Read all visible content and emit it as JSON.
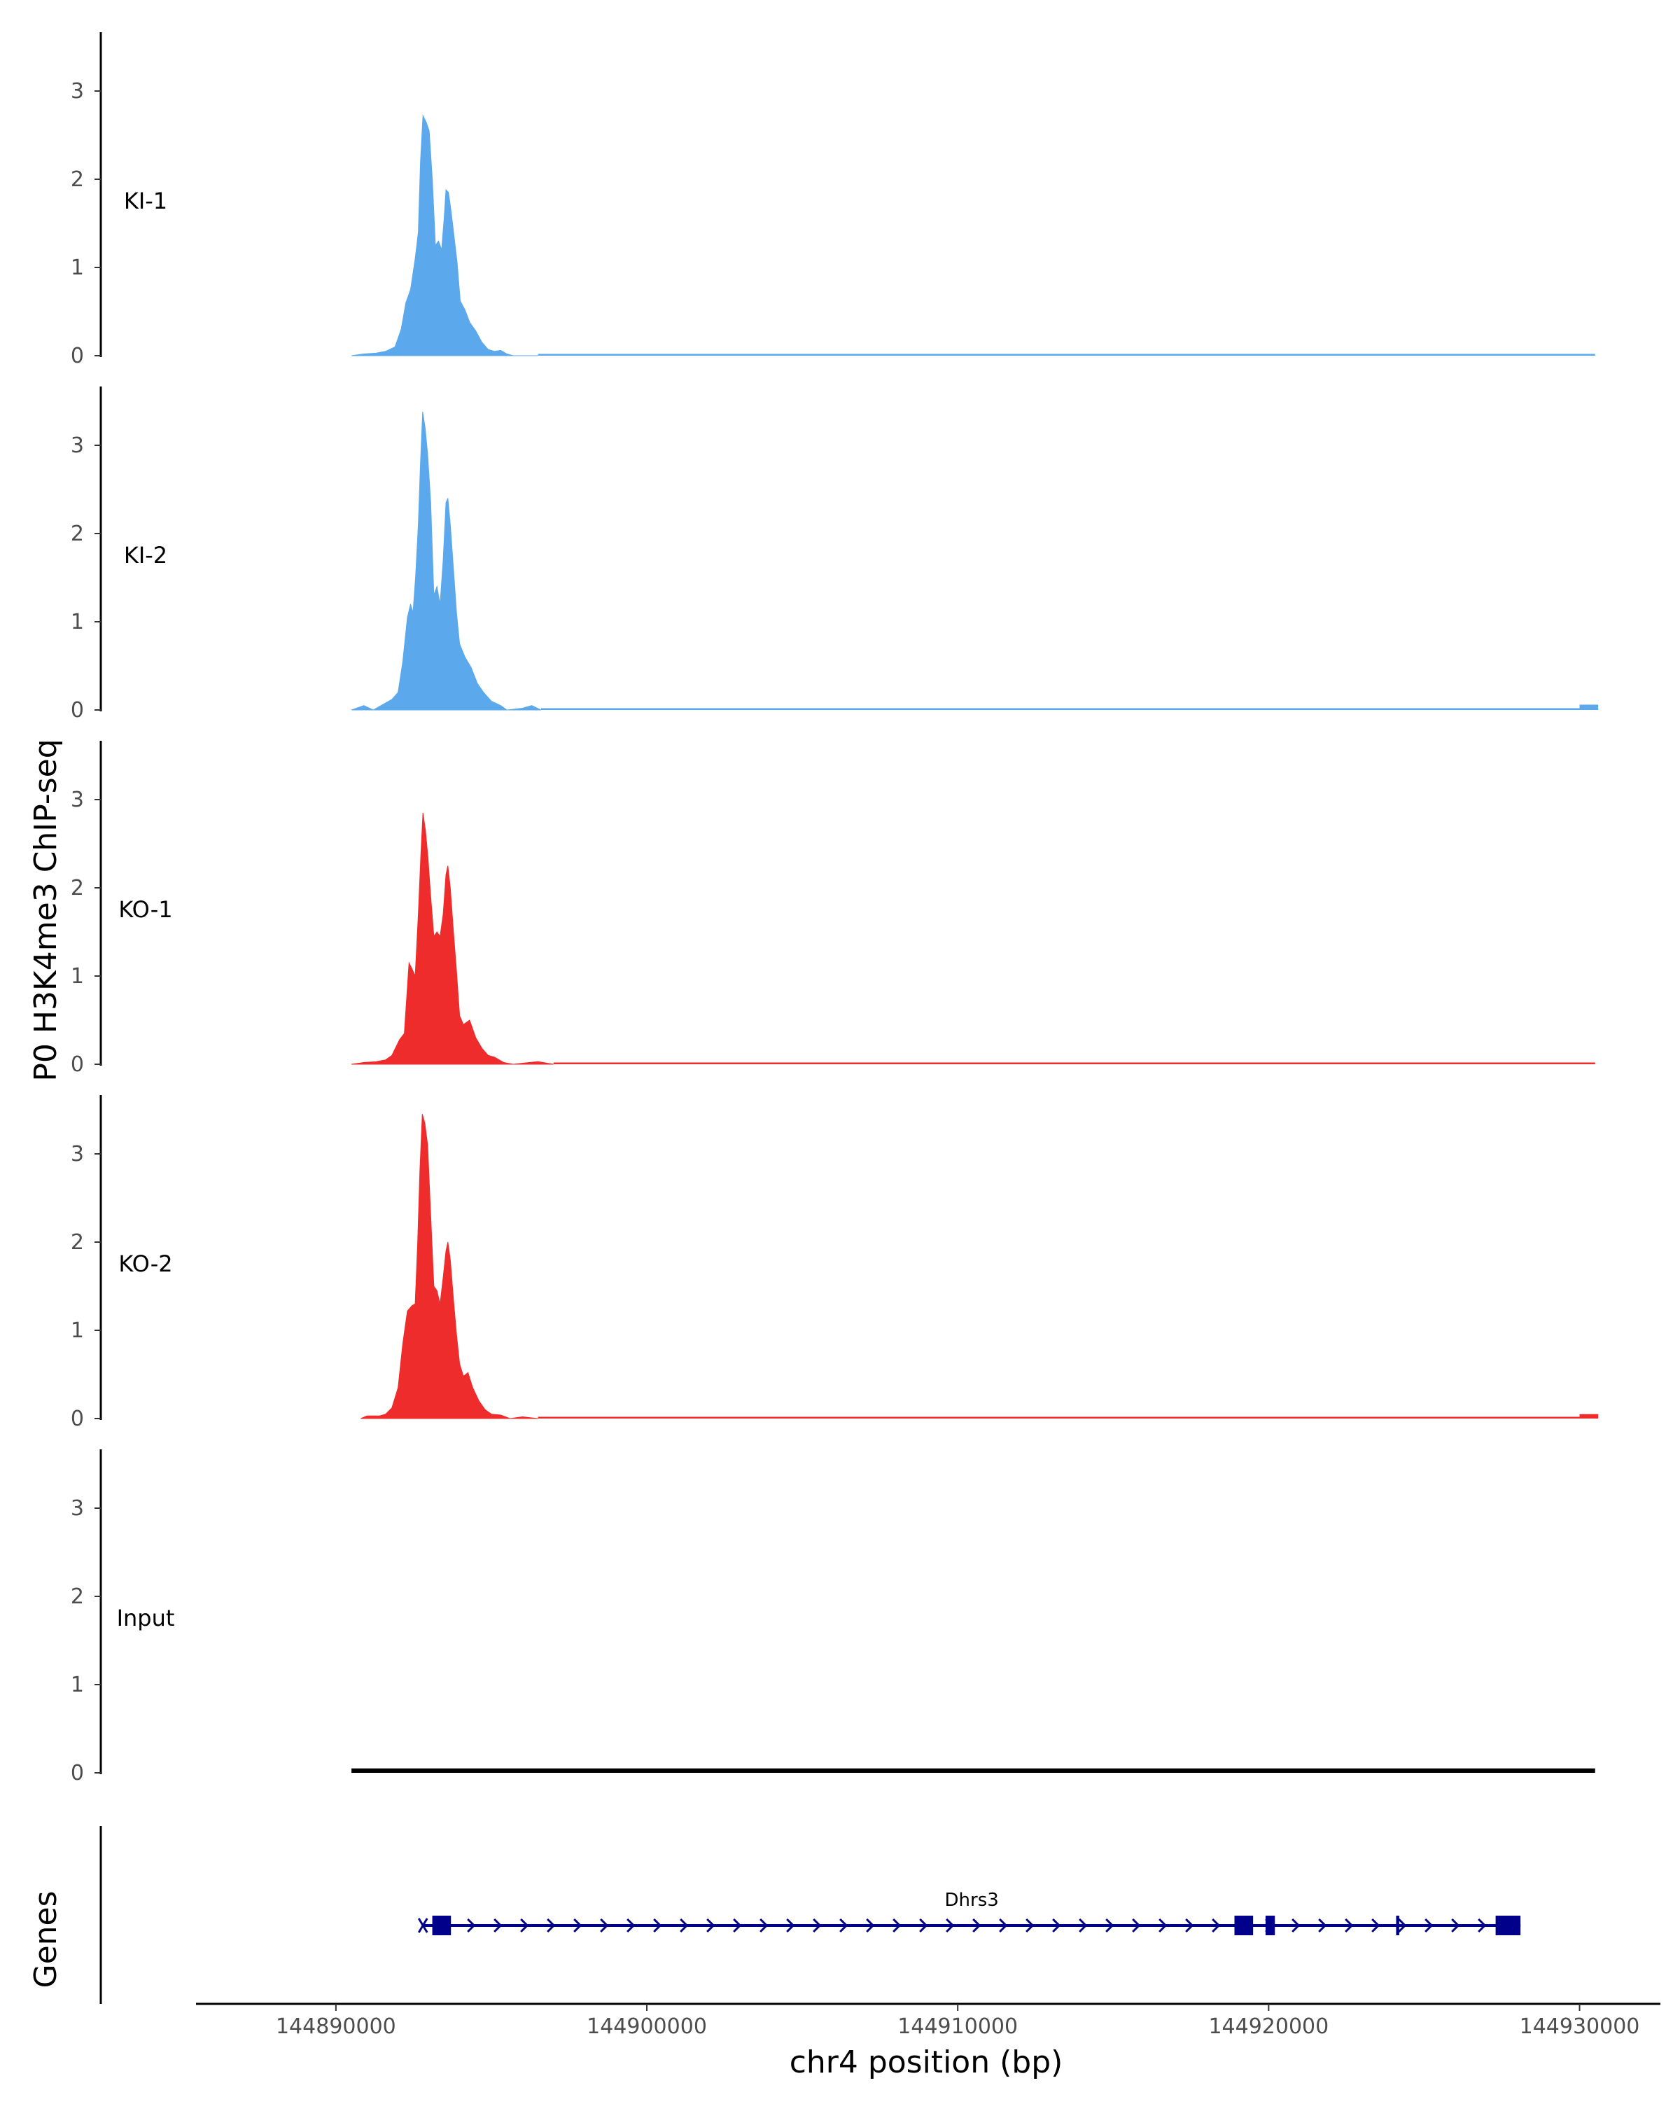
{
  "chart_data": {
    "type": "area",
    "title": "",
    "xlabel": "chr4 position (bp)",
    "ylabel": "P0 H3K4me3 ChIP-seq",
    "genes_label": "Genes",
    "xlim": [
      144885500,
      144932600
    ],
    "ylim": [
      0,
      3.65
    ],
    "yticks": [
      0,
      1,
      2,
      3
    ],
    "xticks": [
      144890000,
      144900000,
      144910000,
      144920000,
      144930000
    ],
    "xtick_labels": [
      "144890000",
      "144900000",
      "144910000",
      "144920000",
      "144930000"
    ],
    "tracks": [
      {
        "name": "KI-1",
        "color": "#5ba9ec",
        "points": [
          [
            144890500,
            0.0
          ],
          [
            144890900,
            0.02
          ],
          [
            144891300,
            0.03
          ],
          [
            144891600,
            0.05
          ],
          [
            144891900,
            0.1
          ],
          [
            144892100,
            0.3
          ],
          [
            144892250,
            0.6
          ],
          [
            144892400,
            0.75
          ],
          [
            144892550,
            1.1
          ],
          [
            144892650,
            1.4
          ],
          [
            144892720,
            2.2
          ],
          [
            144892800,
            2.72
          ],
          [
            144892900,
            2.65
          ],
          [
            144893000,
            2.55
          ],
          [
            144893100,
            2.0
          ],
          [
            144893200,
            1.25
          ],
          [
            144893300,
            1.3
          ],
          [
            144893400,
            1.2
          ],
          [
            144893480,
            1.55
          ],
          [
            144893540,
            1.88
          ],
          [
            144893620,
            1.85
          ],
          [
            144893700,
            1.65
          ],
          [
            144893800,
            1.35
          ],
          [
            144893900,
            1.05
          ],
          [
            144894000,
            0.62
          ],
          [
            144894150,
            0.52
          ],
          [
            144894300,
            0.38
          ],
          [
            144894500,
            0.28
          ],
          [
            144894700,
            0.15
          ],
          [
            144894900,
            0.07
          ],
          [
            144895100,
            0.05
          ],
          [
            144895300,
            0.06
          ],
          [
            144895500,
            0.02
          ],
          [
            144895700,
            0.0
          ],
          [
            144896000,
            0.0
          ],
          [
            144896500,
            0.0
          ]
        ],
        "baseline": [
          [
            144896500,
            144930500,
            0.02
          ]
        ]
      },
      {
        "name": "KI-2",
        "color": "#5ba9ec",
        "points": [
          [
            144890500,
            0.0
          ],
          [
            144890900,
            0.05
          ],
          [
            144891200,
            0.0
          ],
          [
            144891500,
            0.06
          ],
          [
            144891800,
            0.12
          ],
          [
            144892000,
            0.2
          ],
          [
            144892150,
            0.55
          ],
          [
            144892300,
            1.05
          ],
          [
            144892400,
            1.2
          ],
          [
            144892480,
            1.1
          ],
          [
            144892560,
            1.5
          ],
          [
            144892650,
            2.1
          ],
          [
            144892720,
            2.8
          ],
          [
            144892790,
            3.38
          ],
          [
            144892870,
            3.2
          ],
          [
            144892950,
            2.9
          ],
          [
            144893050,
            2.35
          ],
          [
            144893150,
            1.3
          ],
          [
            144893250,
            1.4
          ],
          [
            144893350,
            1.2
          ],
          [
            144893450,
            1.7
          ],
          [
            144893540,
            2.35
          ],
          [
            144893600,
            2.4
          ],
          [
            144893680,
            2.1
          ],
          [
            144893780,
            1.6
          ],
          [
            144893880,
            1.1
          ],
          [
            144893980,
            0.75
          ],
          [
            144894150,
            0.6
          ],
          [
            144894350,
            0.48
          ],
          [
            144894550,
            0.3
          ],
          [
            144894750,
            0.2
          ],
          [
            144895000,
            0.1
          ],
          [
            144895300,
            0.05
          ],
          [
            144895500,
            0.0
          ],
          [
            144896000,
            0.02
          ],
          [
            144896300,
            0.05
          ],
          [
            144896600,
            0.0
          ]
        ],
        "baseline": [
          [
            144896600,
            144930000,
            0.02
          ],
          [
            144930000,
            144930600,
            0.06
          ]
        ]
      },
      {
        "name": "KO-1",
        "color": "#ee2c2c",
        "points": [
          [
            144890500,
            0.0
          ],
          [
            144890900,
            0.02
          ],
          [
            144891300,
            0.03
          ],
          [
            144891600,
            0.05
          ],
          [
            144891800,
            0.1
          ],
          [
            144892050,
            0.28
          ],
          [
            144892200,
            0.35
          ],
          [
            144892350,
            1.15
          ],
          [
            144892450,
            1.08
          ],
          [
            144892550,
            1.0
          ],
          [
            144892650,
            1.7
          ],
          [
            144892730,
            2.35
          ],
          [
            144892800,
            2.85
          ],
          [
            144892880,
            2.65
          ],
          [
            144892960,
            2.35
          ],
          [
            144893050,
            1.9
          ],
          [
            144893150,
            1.45
          ],
          [
            144893250,
            1.5
          ],
          [
            144893350,
            1.45
          ],
          [
            144893450,
            1.7
          ],
          [
            144893540,
            2.15
          ],
          [
            144893600,
            2.25
          ],
          [
            144893680,
            2.0
          ],
          [
            144893780,
            1.5
          ],
          [
            144893880,
            1.05
          ],
          [
            144893980,
            0.55
          ],
          [
            144894100,
            0.45
          ],
          [
            144894300,
            0.5
          ],
          [
            144894500,
            0.3
          ],
          [
            144894700,
            0.18
          ],
          [
            144894900,
            0.1
          ],
          [
            144895100,
            0.08
          ],
          [
            144895400,
            0.02
          ],
          [
            144895700,
            0.0
          ],
          [
            144896500,
            0.03
          ],
          [
            144897000,
            0.0
          ]
        ],
        "baseline": [
          [
            144897000,
            144930500,
            0.02
          ]
        ]
      },
      {
        "name": "KO-2",
        "color": "#ee2c2c",
        "points": [
          [
            144890800,
            0.0
          ],
          [
            144891000,
            0.03
          ],
          [
            144891400,
            0.03
          ],
          [
            144891600,
            0.05
          ],
          [
            144891800,
            0.12
          ],
          [
            144892000,
            0.35
          ],
          [
            144892150,
            0.85
          ],
          [
            144892300,
            1.22
          ],
          [
            144892450,
            1.28
          ],
          [
            144892550,
            1.3
          ],
          [
            144892630,
            2.0
          ],
          [
            144892700,
            2.8
          ],
          [
            144892780,
            3.45
          ],
          [
            144892860,
            3.35
          ],
          [
            144892950,
            3.1
          ],
          [
            144893050,
            2.3
          ],
          [
            144893150,
            1.5
          ],
          [
            144893250,
            1.45
          ],
          [
            144893350,
            1.3
          ],
          [
            144893450,
            1.6
          ],
          [
            144893540,
            1.9
          ],
          [
            144893600,
            2.0
          ],
          [
            144893680,
            1.8
          ],
          [
            144893780,
            1.35
          ],
          [
            144893880,
            0.95
          ],
          [
            144893980,
            0.62
          ],
          [
            144894100,
            0.48
          ],
          [
            144894250,
            0.52
          ],
          [
            144894400,
            0.35
          ],
          [
            144894600,
            0.2
          ],
          [
            144894800,
            0.1
          ],
          [
            144895000,
            0.05
          ],
          [
            144895300,
            0.04
          ],
          [
            144895600,
            0.0
          ],
          [
            144896000,
            0.02
          ],
          [
            144896500,
            0.0
          ]
        ],
        "baseline": [
          [
            144896500,
            144930000,
            0.02
          ],
          [
            144930000,
            144930600,
            0.05
          ]
        ]
      },
      {
        "name": "Input",
        "color": "#000000",
        "points": [],
        "baseline": [
          [
            144890500,
            144930500,
            0.05
          ]
        ]
      }
    ],
    "genes": [
      {
        "name": "Dhrs3",
        "start": 144892800,
        "end": 144928100,
        "strand": "+",
        "color": "#00008b",
        "exons": [
          [
            144893100,
            144893700
          ],
          [
            144918900,
            144919500
          ],
          [
            144919900,
            144920200
          ],
          [
            144924100,
            144924200
          ],
          [
            144927300,
            144928100
          ]
        ]
      }
    ]
  }
}
